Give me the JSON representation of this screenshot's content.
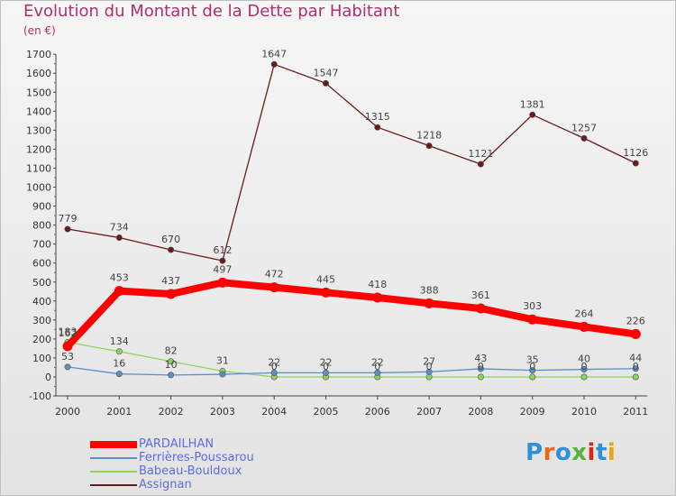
{
  "header": {
    "title": "Evolution du Montant de la Dette par Habitant",
    "subtitle": "(en €)"
  },
  "logo": {
    "text": "Proxiti",
    "letter_colors": [
      "#2f8fd8",
      "#e56a1b",
      "#2f8fd8",
      "#55b33e",
      "#d4281b",
      "#2f8fd8",
      "#e8a21b"
    ]
  },
  "chart_data": {
    "type": "line",
    "title": "Evolution du Montant de la Dette par Habitant",
    "subtitle": "(en €)",
    "xlabel": "",
    "ylabel": "",
    "x": [
      "2000",
      "2001",
      "2002",
      "2003",
      "2004",
      "2005",
      "2006",
      "2007",
      "2008",
      "2009",
      "2010",
      "2011"
    ],
    "ylim": [
      -100,
      1700
    ],
    "yticks": [
      "-100",
      "0",
      "100",
      "200",
      "300",
      "400",
      "500",
      "600",
      "700",
      "800",
      "900",
      "1000",
      "1100",
      "1200",
      "1300",
      "1400",
      "1500",
      "1600",
      "1700"
    ],
    "grid": false,
    "legend_position": "bottom-left",
    "series": [
      {
        "name": "PARDAILHAN",
        "color": "#ff0000",
        "bold": true,
        "values": [
          162,
          453,
          437,
          497,
          472,
          445,
          418,
          388,
          361,
          303,
          264,
          226
        ],
        "labels": [
          "162",
          "453",
          "437",
          "497",
          "472",
          "445",
          "418",
          "388",
          "361",
          "303",
          "264",
          "226"
        ]
      },
      {
        "name": "Ferrières-Poussarou",
        "color": "#5a8fc8",
        "bold": false,
        "values": [
          53,
          16,
          10,
          14,
          22,
          22,
          22,
          27,
          43,
          35,
          40,
          44
        ],
        "labels": [
          "53",
          "16",
          "10",
          "",
          "22",
          "22",
          "22",
          "27",
          "43",
          "35",
          "40",
          "44"
        ]
      },
      {
        "name": "Babeau-Bouldoux",
        "color": "#8fd45a",
        "bold": false,
        "values": [
          183,
          134,
          82,
          31,
          0,
          0,
          0,
          0,
          0,
          0,
          0,
          0
        ],
        "labels": [
          "183",
          "134",
          "82",
          "31",
          "0",
          "0",
          "0",
          "0",
          "0",
          "0",
          "0",
          "0"
        ]
      },
      {
        "name": "Assignan",
        "color": "#6b1a1a",
        "bold": false,
        "values": [
          779,
          734,
          670,
          612,
          1647,
          1547,
          1315,
          1218,
          1121,
          1381,
          1257,
          1126
        ],
        "labels": [
          "779",
          "734",
          "670",
          "612",
          "1647",
          "1547",
          "1315",
          "1218",
          "1121",
          "1381",
          "1257",
          "1126"
        ]
      }
    ]
  }
}
